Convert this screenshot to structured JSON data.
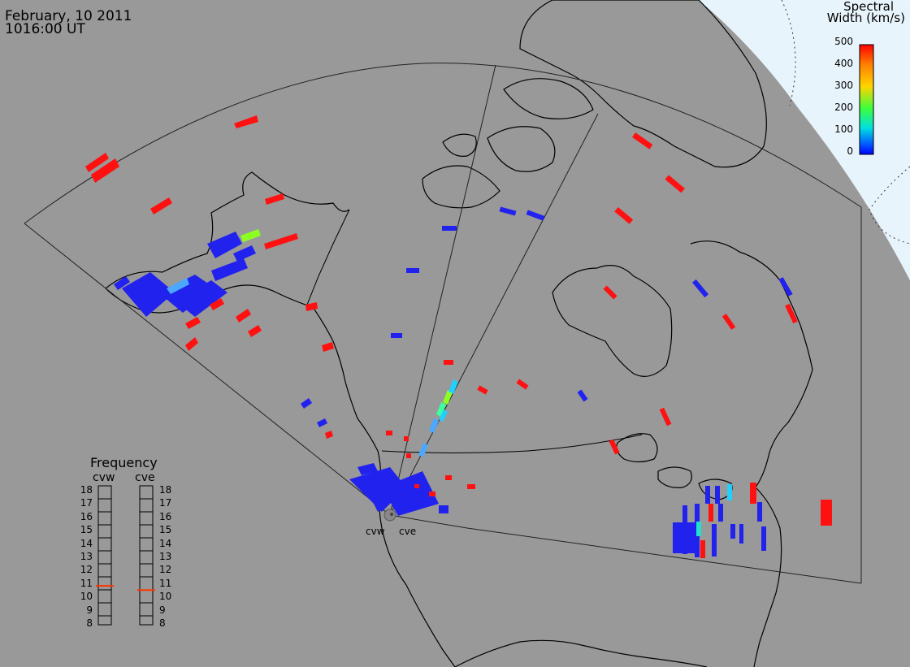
{
  "header": {
    "date": "February, 10 2011",
    "time": "1016:00 UT"
  },
  "colorbar": {
    "title_line1": "Spectral",
    "title_line2": "Width (km/s)",
    "ticks": [
      "500",
      "400",
      "300",
      "200",
      "100",
      "0"
    ],
    "colors": [
      "#ff0000",
      "#ff7f00",
      "#ffd400",
      "#3cff3c",
      "#00e0e0",
      "#0060ff",
      "#0000ff"
    ]
  },
  "frequency": {
    "title": "Frequency",
    "radar1": "cvw",
    "radar2": "cve",
    "labels": [
      "18",
      "17",
      "16",
      "15",
      "14",
      "13",
      "12",
      "11",
      "10",
      "9",
      "8"
    ],
    "cvw_value": 10.8,
    "cve_value": 10.5,
    "marker_color": "#ff3300"
  },
  "radars": {
    "west": "cvw",
    "east": "cve"
  },
  "colors": {
    "map_gray": "#999999",
    "ocean_pale": "#e8f4fb",
    "echo_blue": "#2222ee",
    "echo_red": "#ff1111"
  }
}
